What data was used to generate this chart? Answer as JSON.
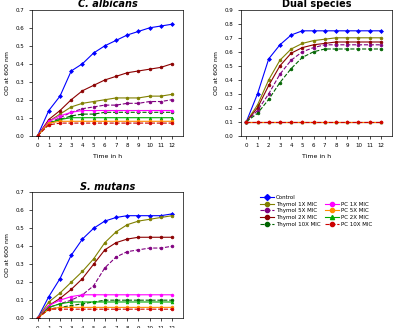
{
  "time": [
    0,
    1,
    2,
    3,
    4,
    5,
    6,
    7,
    8,
    9,
    10,
    11,
    12
  ],
  "ca": {
    "control": [
      0.0,
      0.14,
      0.22,
      0.36,
      0.4,
      0.46,
      0.5,
      0.53,
      0.56,
      0.58,
      0.6,
      0.61,
      0.62
    ],
    "thymol1x": [
      0.0,
      0.08,
      0.12,
      0.16,
      0.18,
      0.19,
      0.2,
      0.21,
      0.21,
      0.21,
      0.22,
      0.22,
      0.23
    ],
    "thymol2x": [
      0.0,
      0.09,
      0.14,
      0.2,
      0.25,
      0.28,
      0.31,
      0.33,
      0.35,
      0.36,
      0.37,
      0.38,
      0.4
    ],
    "thymol5x": [
      0.0,
      0.07,
      0.1,
      0.13,
      0.15,
      0.16,
      0.17,
      0.17,
      0.18,
      0.18,
      0.19,
      0.19,
      0.2
    ],
    "thymol10x": [
      0.0,
      0.07,
      0.09,
      0.11,
      0.12,
      0.12,
      0.13,
      0.13,
      0.13,
      0.13,
      0.13,
      0.13,
      0.13
    ],
    "pc1x": [
      0.0,
      0.08,
      0.11,
      0.13,
      0.14,
      0.14,
      0.14,
      0.14,
      0.14,
      0.14,
      0.14,
      0.14,
      0.14
    ],
    "pc2x": [
      0.0,
      0.07,
      0.09,
      0.1,
      0.1,
      0.1,
      0.1,
      0.1,
      0.1,
      0.1,
      0.1,
      0.1,
      0.1
    ],
    "pc5x": [
      0.0,
      0.07,
      0.08,
      0.08,
      0.08,
      0.08,
      0.08,
      0.08,
      0.08,
      0.08,
      0.08,
      0.08,
      0.08
    ],
    "pc10x": [
      0.0,
      0.06,
      0.07,
      0.07,
      0.07,
      0.07,
      0.07,
      0.07,
      0.07,
      0.07,
      0.07,
      0.07,
      0.07
    ]
  },
  "sm": {
    "control": [
      0.0,
      0.12,
      0.22,
      0.35,
      0.44,
      0.5,
      0.54,
      0.56,
      0.57,
      0.57,
      0.57,
      0.57,
      0.58
    ],
    "thymol1x": [
      0.0,
      0.09,
      0.14,
      0.2,
      0.26,
      0.33,
      0.42,
      0.48,
      0.52,
      0.54,
      0.55,
      0.56,
      0.57
    ],
    "thymol2x": [
      0.0,
      0.07,
      0.11,
      0.16,
      0.22,
      0.3,
      0.38,
      0.42,
      0.44,
      0.45,
      0.45,
      0.45,
      0.45
    ],
    "thymol5x": [
      0.0,
      0.06,
      0.08,
      0.1,
      0.13,
      0.18,
      0.28,
      0.34,
      0.37,
      0.38,
      0.39,
      0.39,
      0.4
    ],
    "thymol10x": [
      0.0,
      0.05,
      0.06,
      0.07,
      0.08,
      0.09,
      0.1,
      0.1,
      0.1,
      0.1,
      0.1,
      0.1,
      0.1
    ],
    "pc1x": [
      0.0,
      0.07,
      0.1,
      0.12,
      0.13,
      0.13,
      0.13,
      0.13,
      0.13,
      0.13,
      0.13,
      0.13,
      0.13
    ],
    "pc2x": [
      0.0,
      0.06,
      0.08,
      0.09,
      0.09,
      0.09,
      0.09,
      0.09,
      0.09,
      0.09,
      0.09,
      0.09,
      0.09
    ],
    "pc5x": [
      0.0,
      0.05,
      0.06,
      0.06,
      0.06,
      0.06,
      0.06,
      0.06,
      0.06,
      0.06,
      0.06,
      0.06,
      0.06
    ],
    "pc10x": [
      0.0,
      0.05,
      0.05,
      0.05,
      0.05,
      0.05,
      0.05,
      0.05,
      0.05,
      0.05,
      0.05,
      0.05,
      0.05
    ]
  },
  "dual": {
    "control": [
      0.1,
      0.3,
      0.55,
      0.65,
      0.72,
      0.75,
      0.75,
      0.75,
      0.75,
      0.75,
      0.75,
      0.75,
      0.75
    ],
    "thymol1x": [
      0.1,
      0.22,
      0.4,
      0.54,
      0.62,
      0.66,
      0.68,
      0.69,
      0.7,
      0.7,
      0.7,
      0.7,
      0.7
    ],
    "thymol2x": [
      0.1,
      0.2,
      0.36,
      0.5,
      0.59,
      0.63,
      0.65,
      0.66,
      0.67,
      0.67,
      0.67,
      0.67,
      0.67
    ],
    "thymol5x": [
      0.1,
      0.18,
      0.3,
      0.44,
      0.54,
      0.6,
      0.63,
      0.65,
      0.65,
      0.65,
      0.65,
      0.65,
      0.65
    ],
    "thymol10x": [
      0.1,
      0.16,
      0.26,
      0.38,
      0.48,
      0.56,
      0.6,
      0.62,
      0.62,
      0.62,
      0.62,
      0.62,
      0.62
    ],
    "pc1x": [
      0.1,
      0.1,
      0.1,
      0.1,
      0.1,
      0.1,
      0.1,
      0.1,
      0.1,
      0.1,
      0.1,
      0.1,
      0.1
    ],
    "pc2x": [
      0.1,
      0.1,
      0.1,
      0.1,
      0.1,
      0.1,
      0.1,
      0.1,
      0.1,
      0.1,
      0.1,
      0.1,
      0.1
    ],
    "pc5x": [
      0.1,
      0.1,
      0.1,
      0.1,
      0.1,
      0.1,
      0.1,
      0.1,
      0.1,
      0.1,
      0.1,
      0.1,
      0.1
    ],
    "pc10x": [
      0.1,
      0.1,
      0.1,
      0.1,
      0.1,
      0.1,
      0.1,
      0.1,
      0.1,
      0.1,
      0.1,
      0.1,
      0.1
    ]
  },
  "series_styles": {
    "control": {
      "color": "#0000FF",
      "marker": "D",
      "ls": "-",
      "label": "Control"
    },
    "thymol1x": {
      "color": "#808000",
      "marker": "o",
      "ls": "-",
      "label": "Thymol 1X MIC"
    },
    "thymol2x": {
      "color": "#8B0000",
      "marker": "o",
      "ls": "-",
      "label": "Thymol 2X MIC"
    },
    "thymol5x": {
      "color": "#800080",
      "marker": "o",
      "ls": "--",
      "label": "Thymol 5X MIC"
    },
    "thymol10x": {
      "color": "#006400",
      "marker": "o",
      "ls": "--",
      "label": "Thymol 10X MIC"
    },
    "pc1x": {
      "color": "#FF00FF",
      "marker": "o",
      "ls": "-",
      "label": "PC 1X MIC"
    },
    "pc2x": {
      "color": "#00AA00",
      "marker": "^",
      "ls": "-",
      "label": "PC 2X MIC"
    },
    "pc5x": {
      "color": "#FF8C00",
      "marker": "o",
      "ls": "-",
      "label": "PC 5X MIC"
    },
    "pc10x": {
      "color": "#CC0000",
      "marker": "o",
      "ls": "--",
      "label": "PC 10X MIC"
    }
  },
  "ca_title": "C. albicans",
  "sm_title": "S. mutans",
  "dual_title": "Dual species",
  "xlabel": "Time in h",
  "ylabel": "OD at 600 nm",
  "ca_ylim": [
    0.0,
    0.7
  ],
  "sm_ylim": [
    0.0,
    0.7
  ],
  "dual_ylim": [
    0.0,
    0.9
  ]
}
